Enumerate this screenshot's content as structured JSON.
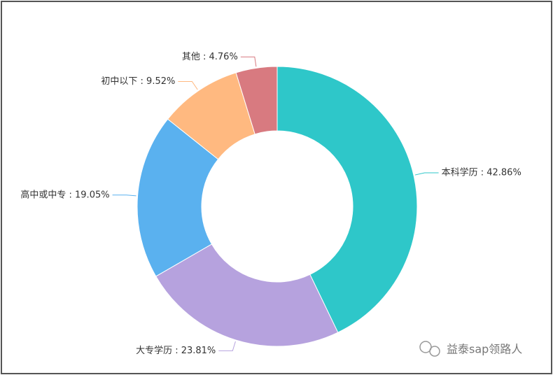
{
  "chart_data": {
    "type": "donut",
    "values": [
      42.86,
      23.81,
      19.05,
      9.52,
      4.76
    ],
    "value_labels": [
      "本科学历 : 42.86%",
      "大专学历 : 23.81%",
      "高中或中专 : 19.05%",
      "初中以下 : 9.52%",
      "其他 : 4.76%"
    ],
    "colors": [
      "#2ec7c9",
      "#b6a2de",
      "#5ab1ef",
      "#ffb980",
      "#d87a80"
    ],
    "watermark": "益泰sap领路人"
  }
}
